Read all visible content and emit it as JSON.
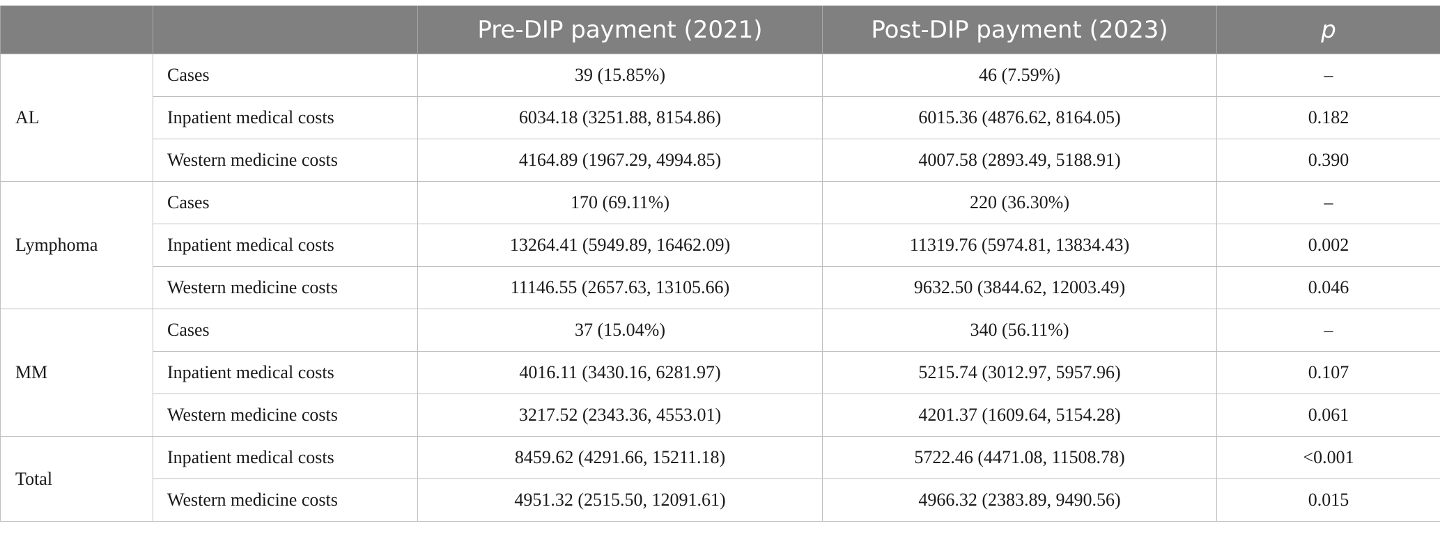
{
  "header": {
    "col0": "",
    "col1": "",
    "col2": "Pre-DIP payment (2021)",
    "col3": "Post-DIP payment (2023)",
    "col4": "p"
  },
  "groups": [
    {
      "name": "AL",
      "rows": [
        {
          "metric": "Cases",
          "pre": "39 (15.85%)",
          "post": "46 (7.59%)",
          "p": "–"
        },
        {
          "metric": "Inpatient medical costs",
          "pre": "6034.18 (3251.88, 8154.86)",
          "post": "6015.36 (4876.62, 8164.05)",
          "p": "0.182"
        },
        {
          "metric": "Western medicine costs",
          "pre": "4164.89 (1967.29, 4994.85)",
          "post": "4007.58 (2893.49, 5188.91)",
          "p": "0.390"
        }
      ]
    },
    {
      "name": "Lymphoma",
      "rows": [
        {
          "metric": "Cases",
          "pre": "170 (69.11%)",
          "post": "220 (36.30%)",
          "p": "–"
        },
        {
          "metric": "Inpatient medical costs",
          "pre": "13264.41 (5949.89, 16462.09)",
          "post": "11319.76 (5974.81, 13834.43)",
          "p": "0.002"
        },
        {
          "metric": "Western medicine costs",
          "pre": "11146.55 (2657.63, 13105.66)",
          "post": "9632.50 (3844.62, 12003.49)",
          "p": "0.046"
        }
      ]
    },
    {
      "name": "MM",
      "rows": [
        {
          "metric": "Cases",
          "pre": "37 (15.04%)",
          "post": "340 (56.11%)",
          "p": "–"
        },
        {
          "metric": "Inpatient medical costs",
          "pre": "4016.11 (3430.16, 6281.97)",
          "post": "5215.74 (3012.97, 5957.96)",
          "p": "0.107"
        },
        {
          "metric": "Western medicine costs",
          "pre": "3217.52 (2343.36, 4553.01)",
          "post": "4201.37 (1609.64, 5154.28)",
          "p": "0.061"
        }
      ]
    },
    {
      "name": "Total",
      "rows": [
        {
          "metric": "Inpatient medical costs",
          "pre": "8459.62 (4291.66, 15211.18)",
          "post": "5722.46 (4471.08, 11508.78)",
          "p": "<0.001"
        },
        {
          "metric": "Western medicine costs",
          "pre": "4951.32 (2515.50, 12091.61)",
          "post": "4966.32 (2383.89, 9490.56)",
          "p": "0.015"
        }
      ]
    }
  ]
}
